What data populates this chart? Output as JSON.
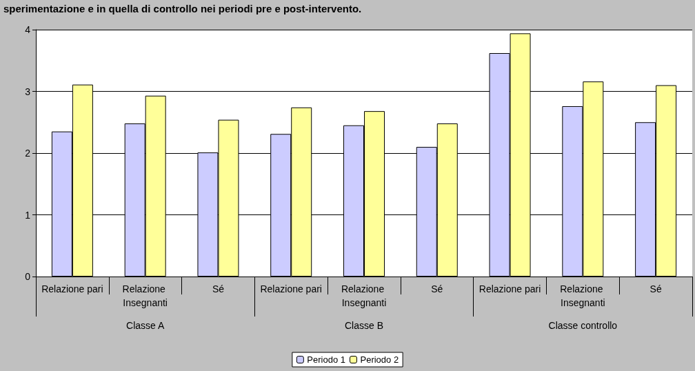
{
  "chart_data": {
    "type": "bar",
    "title": "sperimentazione e in quella di controllo nei periodi pre e post-intervento.",
    "categories": [
      "Relazione pari",
      "Relazione Insegnanti",
      "Sé",
      "Relazione pari",
      "Relazione Insegnanti",
      "Sé",
      "Relazione pari",
      "Relazione Insegnanti",
      "Sé"
    ],
    "series": [
      {
        "name": "Periodo 1",
        "color": "#ccccff",
        "values": [
          2.35,
          2.48,
          2.01,
          2.31,
          2.45,
          2.1,
          3.62,
          2.76,
          2.5
        ]
      },
      {
        "name": "Periodo 2",
        "color": "#ffff99",
        "values": [
          3.11,
          2.93,
          2.54,
          2.74,
          2.68,
          2.48,
          3.94,
          3.16,
          3.1
        ]
      }
    ],
    "annotations": [
      "Classe A",
      "Classe B",
      "Classe controllo"
    ],
    "ylim": [
      0,
      4
    ],
    "yticks": [
      0,
      1,
      2,
      3,
      4
    ],
    "grid": "y",
    "legend": "bottom"
  }
}
